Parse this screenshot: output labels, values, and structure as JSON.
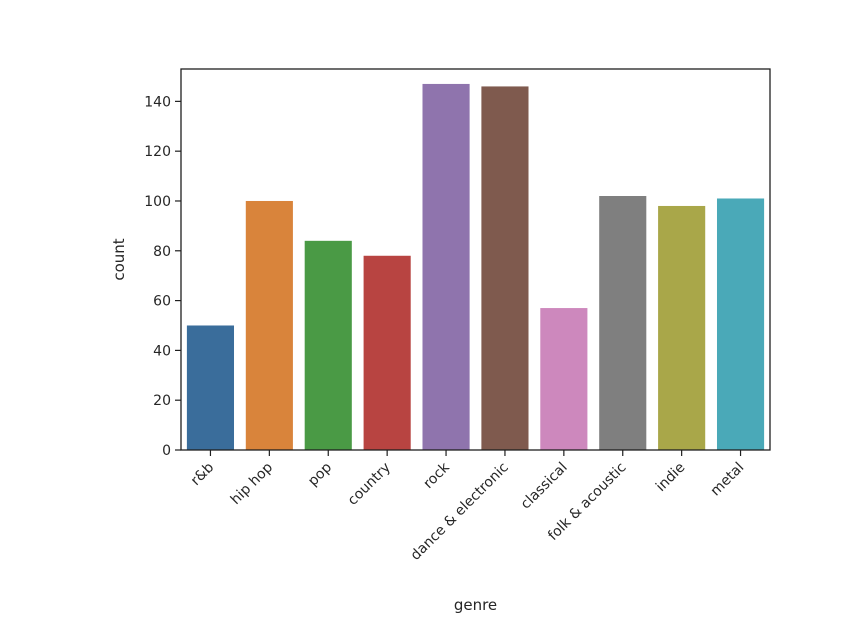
{
  "chart_data": {
    "type": "bar",
    "title": "",
    "xlabel": "genre",
    "ylabel": "count",
    "categories": [
      "r&b",
      "hip hop",
      "pop",
      "country",
      "rock",
      "dance & electronic",
      "classical",
      "folk & acoustic",
      "indie",
      "metal"
    ],
    "values": [
      50,
      100,
      84,
      78,
      147,
      146,
      57,
      102,
      98,
      101
    ],
    "colors": [
      "#3a6d9b",
      "#d9843b",
      "#4a9a45",
      "#b84441",
      "#8f74ad",
      "#7f5a4e",
      "#cd88bd",
      "#7f7f7f",
      "#a9a749",
      "#4aa9b8"
    ],
    "ylim": [
      0,
      153
    ],
    "yticks": [
      0,
      20,
      40,
      60,
      80,
      100,
      120,
      140
    ],
    "grid": false,
    "legend": "none"
  }
}
